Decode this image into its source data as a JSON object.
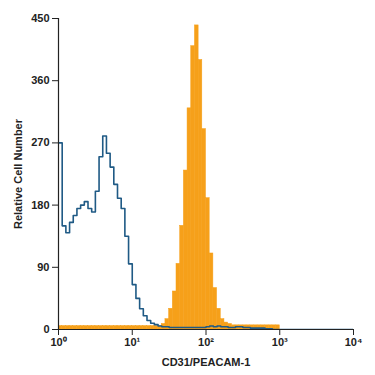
{
  "chart_data": {
    "type": "histogram",
    "x_label": "CD31/PEACAM-1",
    "y_label": "Relative Cell Number",
    "log": "x",
    "grid": false,
    "xlim": [
      1,
      10000
    ],
    "ylim": [
      0,
      450
    ],
    "xticks": [
      {
        "value": 1,
        "label": "10⁰"
      },
      {
        "value": 10,
        "label": "10¹"
      },
      {
        "value": 100,
        "label": "10²"
      },
      {
        "value": 1000,
        "label": "10³"
      },
      {
        "value": 10000,
        "label": "10⁴"
      }
    ],
    "yticks": [
      0,
      90,
      180,
      270,
      360,
      450
    ],
    "bins": [
      1,
      1.122,
      1.259,
      1.413,
      1.585,
      1.778,
      1.995,
      2.239,
      2.512,
      2.818,
      3.162,
      3.548,
      3.981,
      4.467,
      5.012,
      5.623,
      6.31,
      7.079,
      7.943,
      8.913,
      10,
      11.22,
      12.59,
      14.13,
      15.85,
      17.78,
      19.95,
      22.39,
      25.12,
      28.18,
      31.62,
      35.48,
      39.81,
      44.67,
      50.12,
      56.23,
      63.1,
      70.79,
      79.43,
      89.13,
      100,
      112.2,
      125.9,
      141.3,
      158.5,
      177.8,
      199.5,
      223.9,
      251.2,
      281.8,
      316.2,
      354.8,
      398.1,
      446.7,
      501.2,
      562.3,
      631.0,
      707.9,
      794.3,
      891.3,
      1000,
      1122,
      1259,
      1413,
      1585,
      1778,
      1995,
      2239,
      2512,
      2818,
      3162,
      3548,
      3981,
      4467,
      5012,
      5623,
      6310,
      7079,
      7943,
      8913,
      10000
    ],
    "series": [
      {
        "type": "area",
        "color": "#f6a01a",
        "values": [
          5,
          5,
          5,
          5,
          5,
          5,
          5,
          5,
          5,
          5,
          5,
          5,
          5,
          5,
          5,
          5,
          5,
          5,
          5,
          5,
          5,
          5,
          5,
          5,
          5,
          5,
          5,
          5,
          8,
          15,
          30,
          55,
          95,
          150,
          230,
          320,
          410,
          440,
          390,
          290,
          190,
          110,
          60,
          30,
          15,
          10,
          8,
          6,
          6,
          6,
          6,
          6,
          6,
          6,
          6,
          6,
          6,
          6,
          6,
          6,
          0,
          0,
          0,
          0,
          0,
          0,
          0,
          0,
          0,
          0,
          0,
          0,
          0,
          0,
          0,
          0,
          0,
          0,
          0,
          0
        ]
      },
      {
        "type": "line",
        "color": "#1f5a85",
        "values": [
          270,
          150,
          140,
          155,
          165,
          175,
          180,
          185,
          175,
          170,
          200,
          250,
          280,
          255,
          235,
          210,
          190,
          175,
          135,
          95,
          65,
          45,
          30,
          20,
          13,
          9,
          7,
          5,
          4,
          4,
          3,
          3,
          3,
          3,
          3,
          3,
          3,
          3,
          3,
          3,
          4,
          5,
          4,
          5,
          4,
          4,
          3,
          3,
          4,
          4,
          3,
          3,
          2,
          2,
          2,
          2,
          1,
          1,
          0,
          0,
          0,
          0,
          0,
          0,
          0,
          0,
          0,
          0,
          0,
          0,
          0,
          0,
          0,
          0,
          0,
          0,
          0,
          0,
          0,
          0
        ]
      }
    ]
  }
}
